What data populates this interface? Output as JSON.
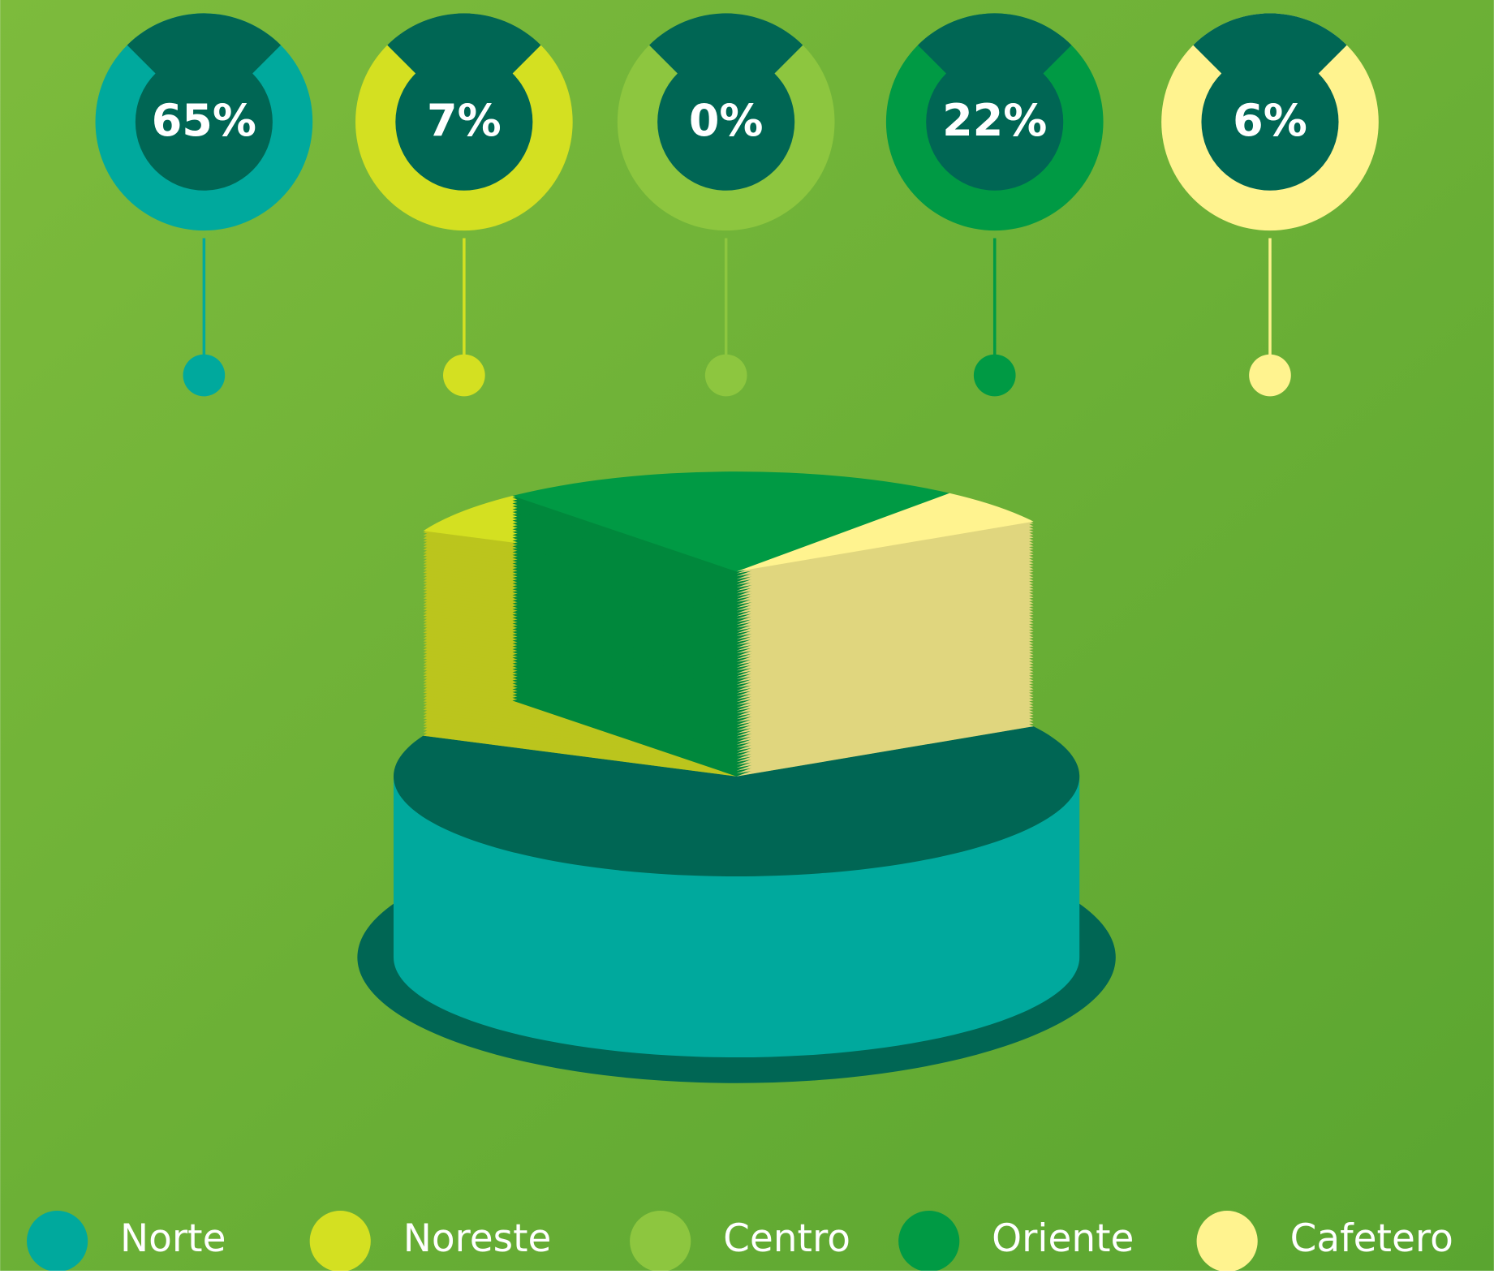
{
  "chart_data": {
    "type": "pie",
    "categories": [
      "Norte",
      "Noreste",
      "Centro",
      "Oriente",
      "Cafetero"
    ],
    "values": [
      65,
      7,
      0,
      22,
      6
    ],
    "value_labels": [
      "65%",
      "7%",
      "0%",
      "22%",
      "6%"
    ],
    "colors": [
      "#00a99d",
      "#d4e021",
      "#8dc63f",
      "#009a44",
      "#fff38f"
    ],
    "legend": "bottom"
  }
}
